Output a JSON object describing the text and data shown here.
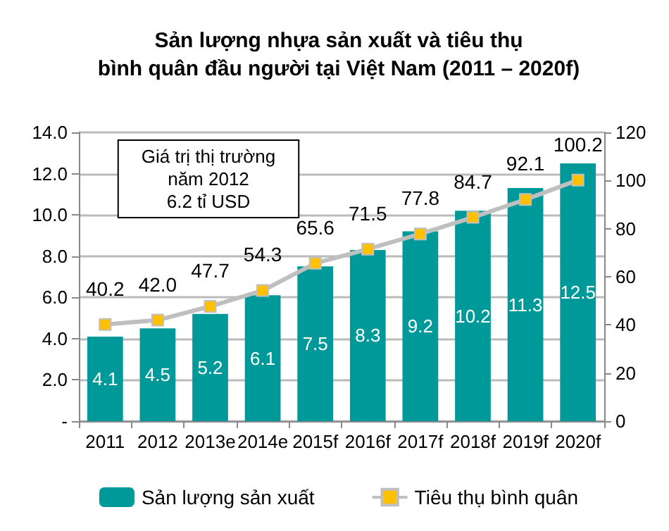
{
  "chart_data": {
    "type": "bar",
    "title": "Sản lượng nhựa sản xuất và tiêu thụ\nbình quân đầu người tại Việt Nam (2011 – 2020f)",
    "categories": [
      "2011",
      "2012",
      "2013e",
      "2014e",
      "2015f",
      "2016f",
      "2017f",
      "2018f",
      "2019f",
      "2020f"
    ],
    "series": [
      {
        "name": "Sản lượng sản xuất",
        "color": "#009999",
        "values": [
          4.1,
          4.5,
          5.2,
          6.1,
          7.5,
          8.3,
          9.2,
          10.2,
          11.3,
          12.5
        ]
      },
      {
        "name": "Tiêu thụ bình quân",
        "type": "line",
        "axis": "y2",
        "color": "#bfbfbf",
        "marker": "square",
        "values": [
          40.2,
          42.0,
          47.7,
          54.3,
          65.6,
          71.5,
          77.8,
          84.7,
          92.1,
          100.2
        ],
        "value_labels": [
          "40.2",
          "42.0",
          "47.7",
          "54.3",
          "65.6",
          "71.5",
          "77.8",
          "84.7",
          "92.1",
          "100.2"
        ]
      }
    ],
    "data_labels": true,
    "ylim": [
      0,
      14
    ],
    "yticks": [
      {
        "value": 0,
        "label": "-"
      },
      {
        "value": 2,
        "label": "2.0"
      },
      {
        "value": 4,
        "label": "4.0"
      },
      {
        "value": 6,
        "label": "6.0"
      },
      {
        "value": 8,
        "label": "8.0"
      },
      {
        "value": 10,
        "label": "10.0"
      },
      {
        "value": 12,
        "label": "12.0"
      },
      {
        "value": 14,
        "label": "14.0"
      }
    ],
    "y2lim": [
      0,
      120
    ],
    "y2ticks": [
      0,
      20,
      40,
      60,
      80,
      100,
      120
    ],
    "annotations": [
      "Giá trị thị trường\nnăm 2012\n6.2 tỉ USD"
    ],
    "grid": "y",
    "legend": "bottom"
  }
}
